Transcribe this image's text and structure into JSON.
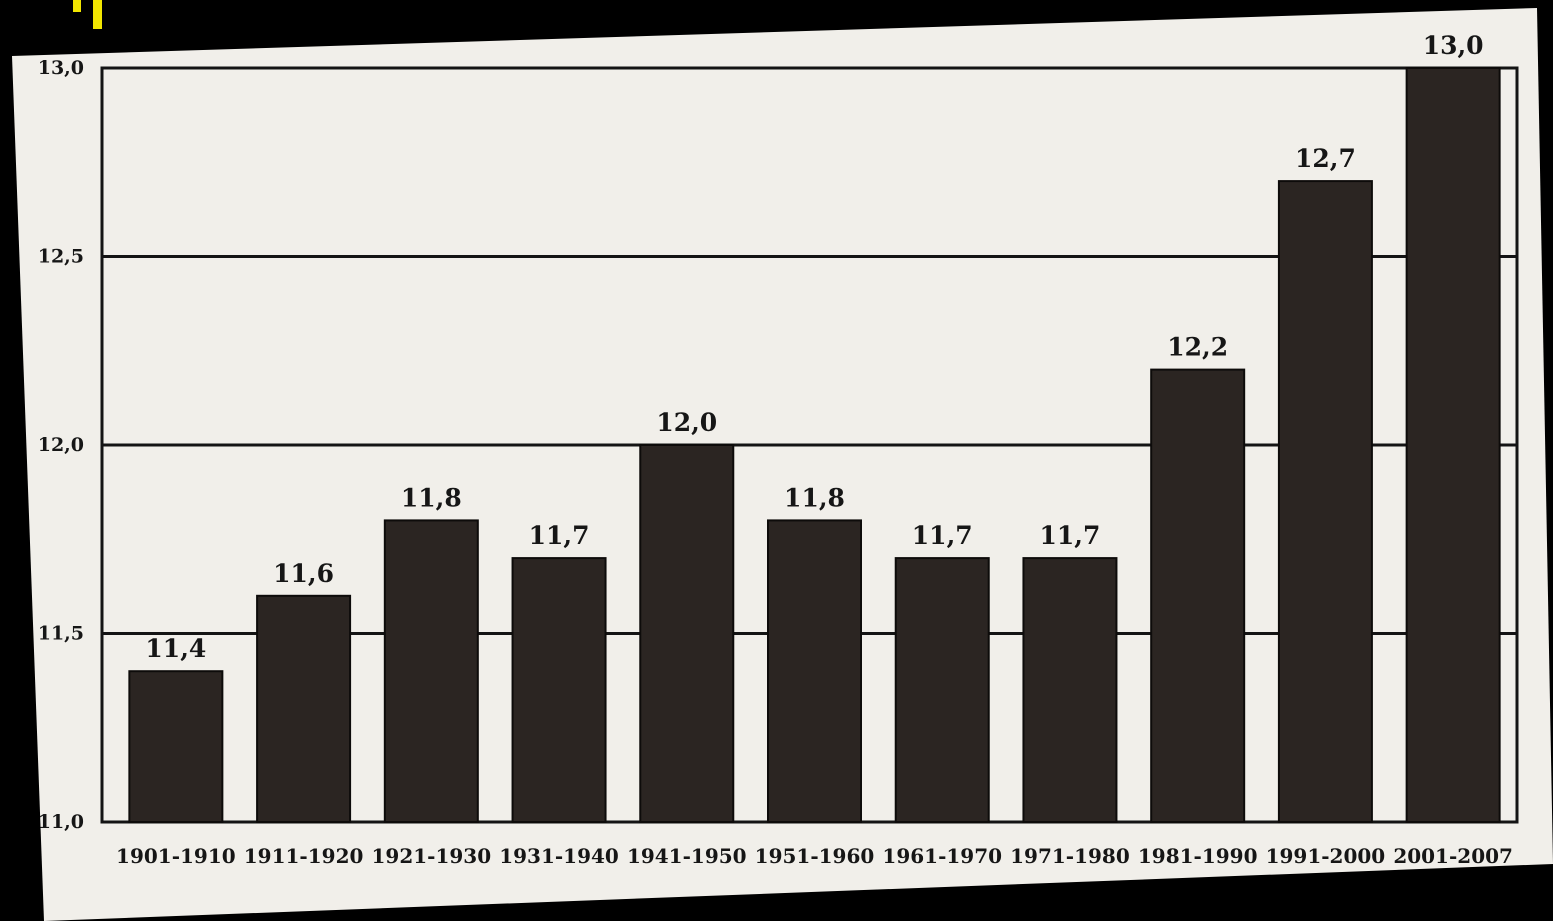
{
  "colors": {
    "background": "#000000",
    "paper": "#f1efea",
    "bar": "#2b2522",
    "grid": "#141414",
    "text": "#161616",
    "accent_mark": "#f2e600"
  },
  "chart_data": {
    "type": "bar",
    "title": "",
    "xlabel": "",
    "ylabel": "",
    "categories": [
      "1901-1910",
      "1911-1920",
      "1921-1930",
      "1931-1940",
      "1941-1950",
      "1951-1960",
      "1961-1970",
      "1971-1980",
      "1981-1990",
      "1991-2000",
      "2001-2007"
    ],
    "values": [
      11.4,
      11.6,
      11.8,
      11.7,
      12.0,
      11.8,
      11.7,
      11.7,
      12.2,
      12.7,
      13.0
    ],
    "value_labels": [
      "11,4",
      "11,6",
      "11,8",
      "11,7",
      "12,0",
      "11,8",
      "11,7",
      "11,7",
      "12,2",
      "12,7",
      "13,0"
    ],
    "ylim": [
      11.0,
      13.0
    ],
    "yticks": [
      11.0,
      11.5,
      12.0,
      12.5,
      13.0
    ],
    "ytick_labels": [
      "11,0",
      "11,5",
      "12,0",
      "12,5",
      "13,0"
    ],
    "grid": true,
    "legend": "none"
  }
}
